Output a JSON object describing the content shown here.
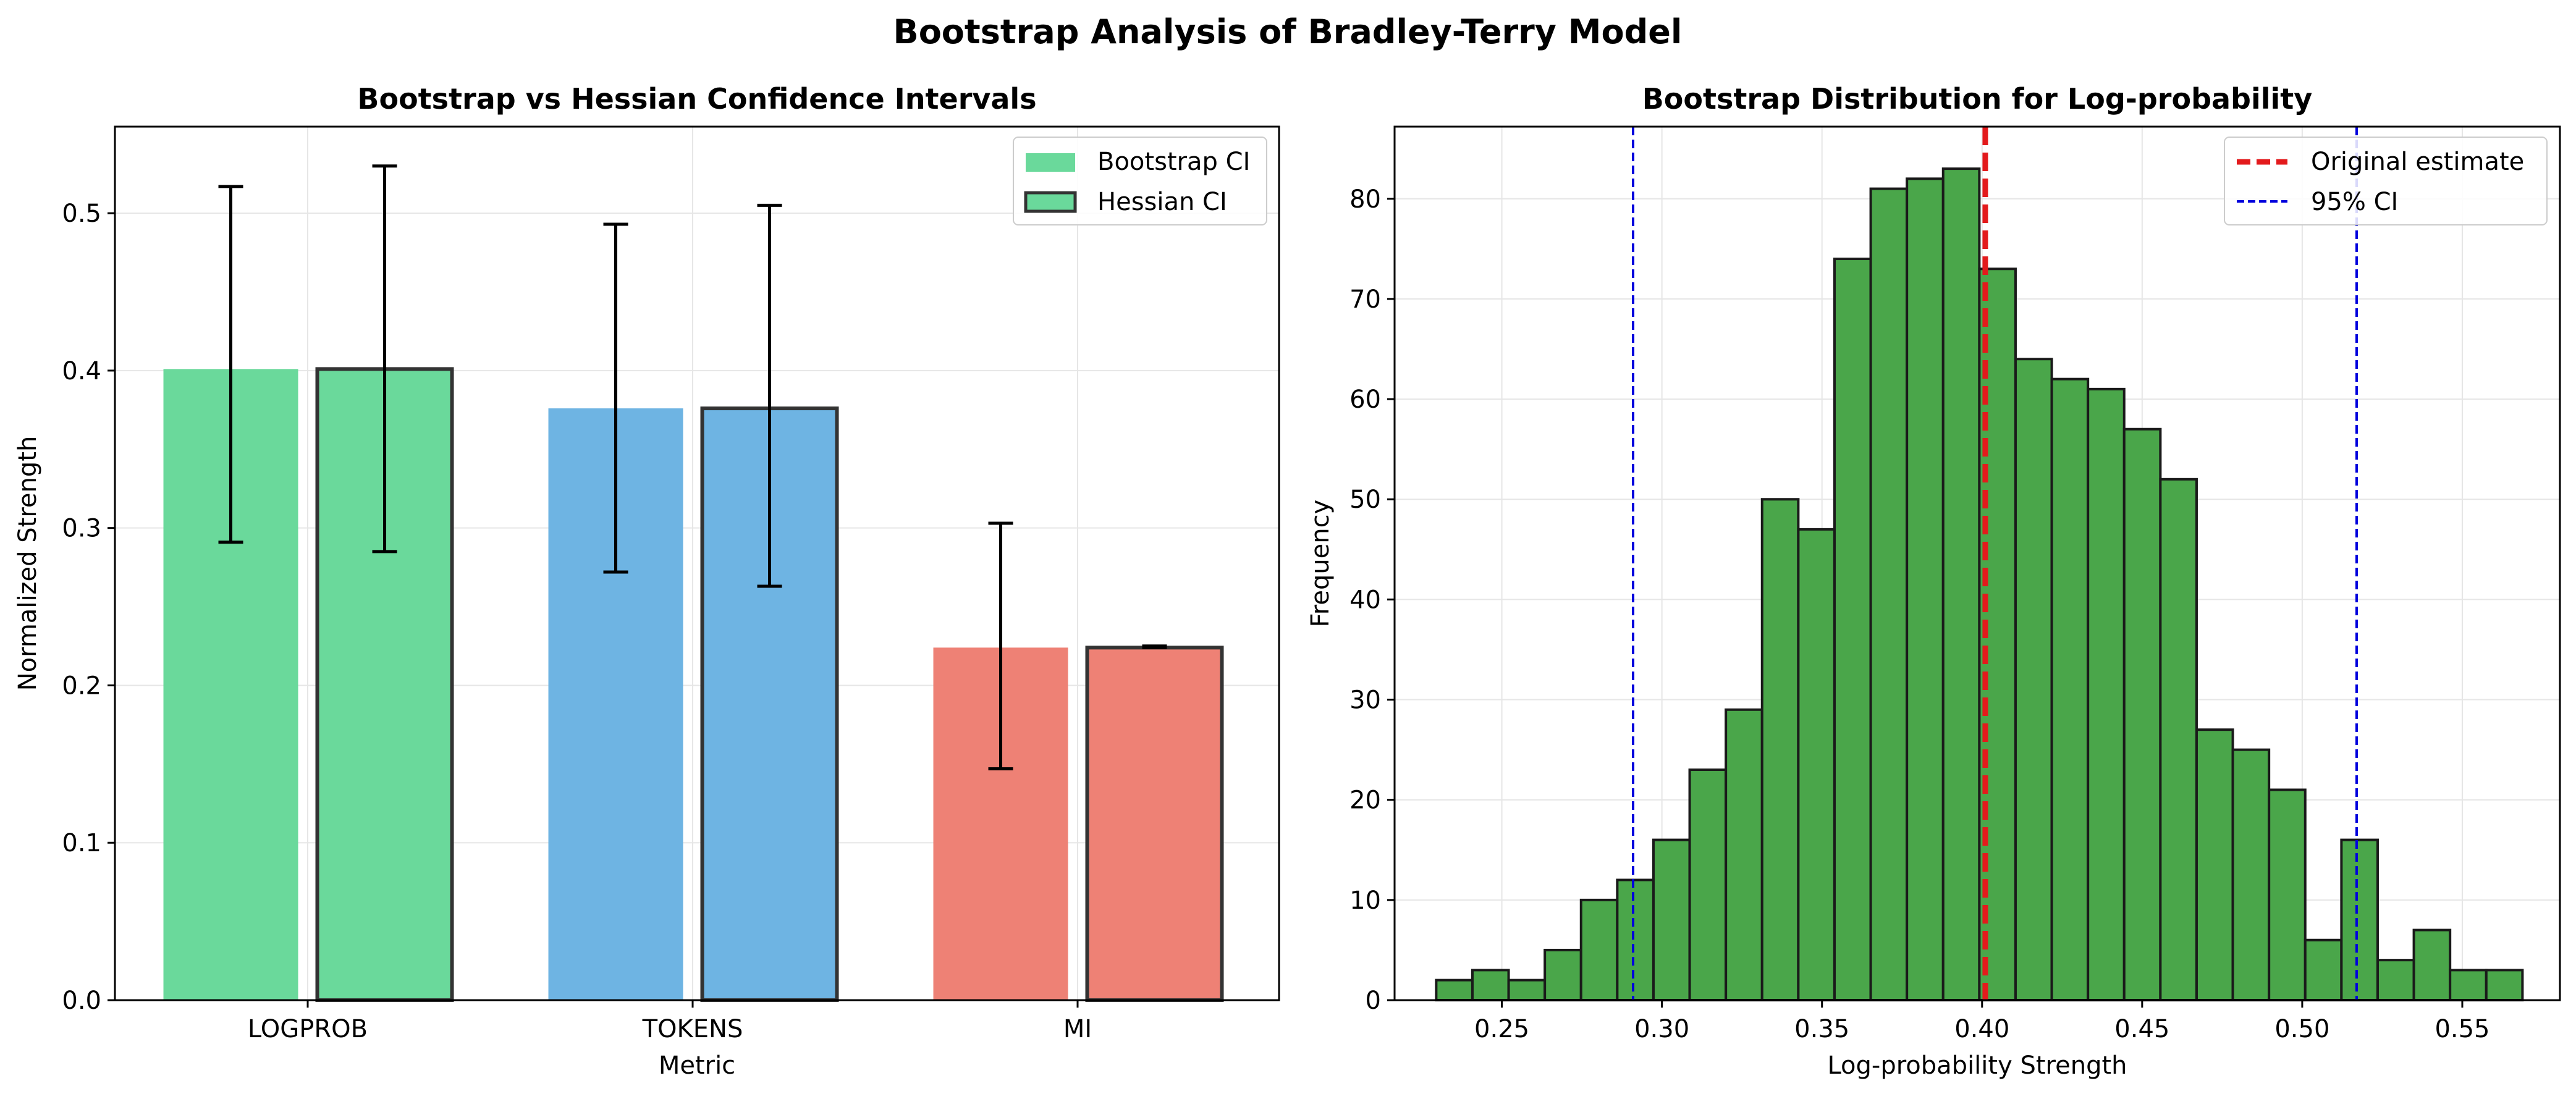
{
  "figure": {
    "title": "Bootstrap Analysis of Bradley-Terry Model"
  },
  "chart_data": [
    {
      "type": "bar",
      "title": "Bootstrap vs Hessian Confidence Intervals",
      "xlabel": "Metric",
      "ylabel": "Normalized Strength",
      "ylim": [
        0,
        0.555
      ],
      "yticks": [
        "0.0",
        "0.1",
        "0.2",
        "0.3",
        "0.4",
        "0.5"
      ],
      "categories": [
        "LOGPROB",
        "TOKENS",
        "MI"
      ],
      "colors": [
        "#6ad99b",
        "#6eb4e3",
        "#ee8175"
      ],
      "grid": true,
      "legend": {
        "placement": "top-right",
        "entries": [
          "Bootstrap CI",
          "Hessian CI"
        ]
      },
      "series": [
        {
          "name": "Bootstrap CI",
          "values": [
            0.401,
            0.376,
            0.224
          ],
          "ci_low": [
            0.291,
            0.272,
            0.147
          ],
          "ci_high": [
            0.517,
            0.493,
            0.303
          ],
          "edge": false
        },
        {
          "name": "Hessian CI",
          "values": [
            0.401,
            0.376,
            0.224
          ],
          "ci_low": [
            0.285,
            0.263,
            0.224
          ],
          "ci_high": [
            0.53,
            0.505,
            0.225
          ],
          "edge": true
        }
      ]
    },
    {
      "type": "histogram",
      "title": "Bootstrap Distribution for Log-probability",
      "xlabel": "Log-probability Strength",
      "ylabel": "Frequency",
      "xlim": [
        0.2165,
        0.5805
      ],
      "ylim": [
        0,
        87.2
      ],
      "xticks": [
        "0.25",
        "0.30",
        "0.35",
        "0.40",
        "0.45",
        "0.50",
        "0.55"
      ],
      "yticks": [
        "0",
        "10",
        "20",
        "30",
        "40",
        "50",
        "60",
        "70",
        "80"
      ],
      "bar_color": "#4aa64a",
      "bin_start": 0.2295,
      "bin_width": 0.01131,
      "counts": [
        2,
        3,
        2,
        5,
        10,
        12,
        16,
        23,
        29,
        50,
        47,
        74,
        81,
        82,
        83,
        73,
        64,
        62,
        61,
        57,
        52,
        27,
        25,
        21,
        6,
        16,
        4,
        7,
        3,
        3
      ],
      "original_estimate": 0.401,
      "ci": [
        0.291,
        0.517
      ],
      "grid": true,
      "legend": {
        "placement": "top-right",
        "entries": [
          "Original estimate",
          "95% CI"
        ]
      }
    }
  ]
}
